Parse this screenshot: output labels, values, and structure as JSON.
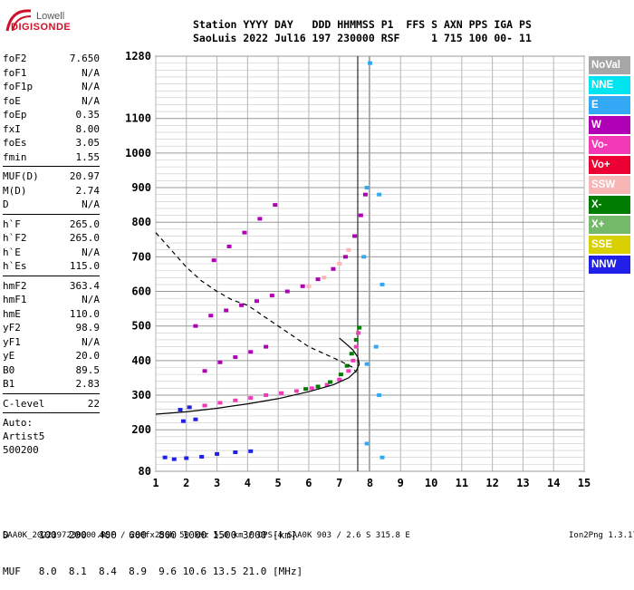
{
  "logo": {
    "line1": "Lowell",
    "line2": "DIGISONDE"
  },
  "header": {
    "line1": "Station YYYY DAY   DDD HHMMSS P1  FFS S AXN PPS IGA PS",
    "line2": "SaoLuis 2022 Jul16 197 230000 RSF     1 715 100 00- 11"
  },
  "params": {
    "group1": [
      {
        "name": "foF2",
        "value": "7.650"
      },
      {
        "name": "foF1",
        "value": "N/A"
      },
      {
        "name": "foF1p",
        "value": "N/A"
      },
      {
        "name": "foE",
        "value": "N/A"
      },
      {
        "name": "foEp",
        "value": "0.35"
      },
      {
        "name": "fxI",
        "value": "8.00"
      },
      {
        "name": "foEs",
        "value": "3.05"
      },
      {
        "name": "fmin",
        "value": "1.55"
      }
    ],
    "group2": [
      {
        "name": "MUF(D)",
        "value": "20.97"
      },
      {
        "name": "M(D)",
        "value": "2.74"
      },
      {
        "name": "D",
        "value": "N/A"
      }
    ],
    "group3": [
      {
        "name": "h`F",
        "value": "265.0"
      },
      {
        "name": "h`F2",
        "value": "265.0"
      },
      {
        "name": "h`E",
        "value": "N/A"
      },
      {
        "name": "h`Es",
        "value": "115.0"
      }
    ],
    "group4": [
      {
        "name": "hmF2",
        "value": "363.4"
      },
      {
        "name": "hmF1",
        "value": "N/A"
      },
      {
        "name": "hmE",
        "value": "110.0"
      },
      {
        "name": "yF2",
        "value": "98.9"
      },
      {
        "name": "yF1",
        "value": "N/A"
      },
      {
        "name": "yE",
        "value": "20.0"
      },
      {
        "name": "B0",
        "value": "89.5"
      },
      {
        "name": "B1",
        "value": "2.83"
      }
    ],
    "group5": [
      {
        "name": "C-level",
        "value": "22"
      }
    ],
    "auto": [
      "Auto:",
      "Artist5",
      "500200"
    ]
  },
  "legend": [
    {
      "label": "NoVal",
      "color": "#a6a6a6"
    },
    {
      "label": "NNE",
      "color": "#00e4f0"
    },
    {
      "label": "E",
      "color": "#33a8f4"
    },
    {
      "label": "W",
      "color": "#b000b6"
    },
    {
      "label": "Vo-",
      "color": "#f23ab6"
    },
    {
      "label": "Vo+",
      "color": "#ec0033"
    },
    {
      "label": "SSW",
      "color": "#f7b5b5"
    },
    {
      "label": "X-",
      "color": "#007c00"
    },
    {
      "label": "X+",
      "color": "#74b86a"
    },
    {
      "label": "SSE",
      "color": "#d8d000"
    },
    {
      "label": "NNW",
      "color": "#2020e8"
    }
  ],
  "dmuf": {
    "d_row": "D     100  200  400  600  800 1000 1500 3000 [km]",
    "muf_row": "MUF   8.0  8.1  8.4  8.9  9.6 10.6 13.5 21.0 [MHz]"
  },
  "footer": {
    "left": "SAA0K_2022197230000.RSF / 280fx256h 50 kHz 5.0 km / DPS-4 SAA0K 903 / 2.6 S 315.8 E",
    "right": "Ion2Png 1.3.17"
  },
  "chart_data": {
    "type": "scatter",
    "xlim": [
      1,
      15
    ],
    "ylim": [
      80,
      1280
    ],
    "x_ticks": [
      1,
      2,
      3,
      4,
      5,
      6,
      7,
      8,
      9,
      10,
      11,
      12,
      13,
      14,
      15
    ],
    "y_ticks": [
      80,
      200,
      300,
      400,
      500,
      600,
      700,
      800,
      900,
      1000,
      1100,
      1280
    ],
    "xlabel": "",
    "ylabel": "",
    "grid": true,
    "series": [
      {
        "color": "#2020e8",
        "points": [
          [
            1.8,
            258
          ],
          [
            2.1,
            265
          ],
          [
            2.6,
            270
          ],
          [
            2.3,
            230
          ],
          [
            1.9,
            225
          ],
          [
            1.3,
            120
          ],
          [
            1.6,
            115
          ],
          [
            2.0,
            118
          ],
          [
            2.5,
            122
          ],
          [
            3.0,
            130
          ],
          [
            3.6,
            135
          ],
          [
            4.1,
            138
          ]
        ]
      },
      {
        "color": "#f23ab6",
        "points": [
          [
            2.6,
            270
          ],
          [
            3.1,
            278
          ],
          [
            3.6,
            285
          ],
          [
            4.1,
            292
          ],
          [
            4.6,
            300
          ],
          [
            5.1,
            306
          ],
          [
            5.6,
            312
          ],
          [
            6.1,
            320
          ],
          [
            6.6,
            330
          ],
          [
            7.0,
            345
          ],
          [
            7.3,
            370
          ],
          [
            7.45,
            400
          ],
          [
            7.55,
            440
          ],
          [
            7.62,
            480
          ]
        ]
      },
      {
        "color": "#007c00",
        "points": [
          [
            5.9,
            318
          ],
          [
            6.3,
            325
          ],
          [
            6.7,
            338
          ],
          [
            7.05,
            360
          ],
          [
            7.25,
            385
          ],
          [
            7.4,
            420
          ],
          [
            7.55,
            460
          ],
          [
            7.65,
            495
          ]
        ]
      },
      {
        "color": "#b000b6",
        "points": [
          [
            2.3,
            500
          ],
          [
            2.8,
            530
          ],
          [
            3.3,
            545
          ],
          [
            3.8,
            560
          ],
          [
            4.3,
            572
          ],
          [
            4.8,
            588
          ],
          [
            5.3,
            600
          ],
          [
            5.8,
            615
          ],
          [
            6.3,
            635
          ],
          [
            6.8,
            665
          ],
          [
            7.2,
            700
          ],
          [
            7.5,
            760
          ],
          [
            7.7,
            820
          ],
          [
            7.85,
            880
          ]
        ]
      },
      {
        "color": "#f7b5b5",
        "points": [
          [
            6.0,
            615
          ],
          [
            6.5,
            640
          ],
          [
            7.0,
            680
          ],
          [
            7.3,
            720
          ]
        ]
      },
      {
        "color": "#b000b6",
        "points": [
          [
            2.9,
            690
          ],
          [
            3.4,
            730
          ],
          [
            3.9,
            770
          ],
          [
            4.4,
            810
          ],
          [
            4.9,
            850
          ]
        ]
      },
      {
        "color": "#b000b6",
        "points": [
          [
            2.6,
            370
          ],
          [
            3.1,
            395
          ],
          [
            3.6,
            410
          ],
          [
            4.1,
            425
          ],
          [
            4.6,
            440
          ]
        ]
      },
      {
        "color": "#33a8f4",
        "points": [
          [
            7.9,
            900
          ],
          [
            8.3,
            880
          ],
          [
            7.8,
            700
          ],
          [
            8.4,
            620
          ],
          [
            8.2,
            440
          ],
          [
            7.9,
            390
          ],
          [
            8.3,
            300
          ],
          [
            7.9,
            160
          ],
          [
            8.4,
            120
          ],
          [
            8.0,
            1260
          ]
        ]
      }
    ],
    "profile_solid": [
      [
        1,
        245
      ],
      [
        2,
        252
      ],
      [
        3,
        262
      ],
      [
        4,
        275
      ],
      [
        5,
        290
      ],
      [
        6,
        310
      ],
      [
        6.8,
        330
      ],
      [
        7.3,
        350
      ],
      [
        7.55,
        370
      ],
      [
        7.65,
        390
      ],
      [
        7.6,
        410
      ],
      [
        7.45,
        430
      ],
      [
        7.2,
        450
      ],
      [
        7.0,
        465
      ]
    ],
    "profile_dashed": [
      [
        1,
        770
      ],
      [
        1.5,
        720
      ],
      [
        2,
        670
      ],
      [
        2.5,
        630
      ],
      [
        3,
        600
      ],
      [
        3.5,
        575
      ],
      [
        4,
        560
      ],
      [
        4.5,
        530
      ],
      [
        5,
        500
      ],
      [
        5.5,
        470
      ],
      [
        6,
        440
      ],
      [
        6.5,
        420
      ],
      [
        7,
        400
      ],
      [
        7.45,
        380
      ],
      [
        7.55,
        365
      ]
    ],
    "vertical_lines": [
      {
        "x": 7.6,
        "color": "#000000"
      },
      {
        "x": 7.97,
        "color": "#a6a6a6"
      }
    ]
  }
}
